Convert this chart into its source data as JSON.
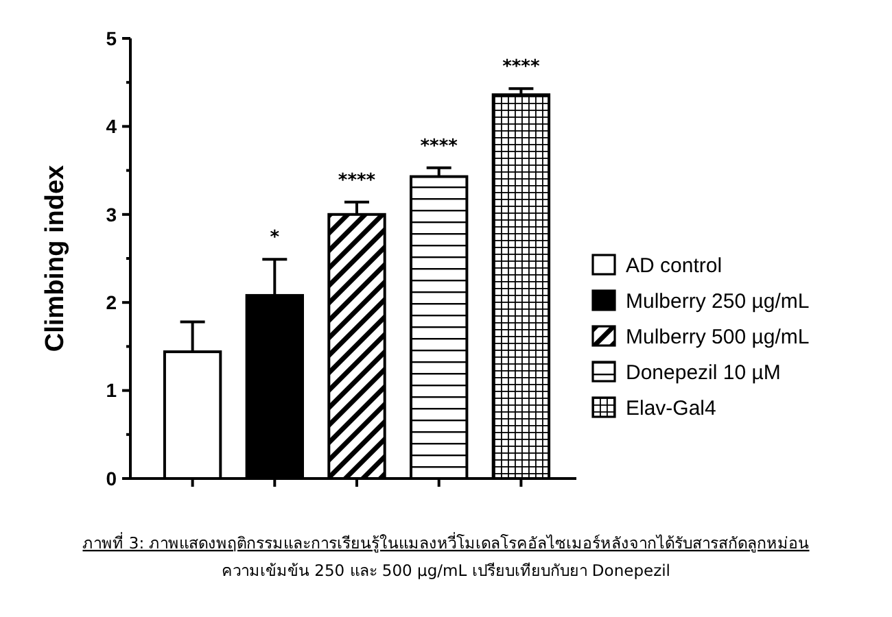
{
  "chart_data": {
    "type": "bar",
    "ylabel": "Climbing index",
    "categories": [
      null,
      null,
      null,
      null,
      null
    ],
    "series": [
      {
        "name": "AD control",
        "color": "#ffffff",
        "values": [
          1.44,
          null,
          null,
          null,
          null
        ],
        "errors": [
          [
            1.44,
            1.78
          ],
          null,
          null,
          null,
          null
        ],
        "value_labels": [
          null,
          null,
          null,
          null,
          null
        ]
      },
      {
        "name": "Mulberry 250 µg/mL",
        "color": "#000000",
        "values": [
          null,
          2.08,
          null,
          null,
          null
        ],
        "errors": [
          null,
          [
            2.08,
            2.49
          ],
          null,
          null,
          null
        ],
        "value_labels": [
          null,
          "*",
          null,
          null,
          null
        ]
      },
      {
        "name": "Mulberry  500 µg/mL",
        "color": "#000000",
        "values": [
          null,
          null,
          3.0,
          null,
          null
        ],
        "errors": [
          null,
          null,
          [
            3.0,
            3.14
          ],
          null,
          null
        ],
        "value_labels": [
          null,
          null,
          "****",
          null,
          null
        ]
      },
      {
        "name": "Donepezil 10 µM",
        "color": "#000000",
        "values": [
          null,
          null,
          null,
          3.43,
          null
        ],
        "errors": [
          null,
          null,
          null,
          [
            3.43,
            3.53
          ],
          null
        ],
        "value_labels": [
          null,
          null,
          null,
          "****",
          null
        ]
      },
      {
        "name": "Elav-Gal4",
        "color": "#000000",
        "values": [
          null,
          null,
          null,
          null,
          4.36
        ],
        "errors": [
          null,
          null,
          null,
          null,
          [
            4.36,
            4.43
          ]
        ],
        "value_labels": [
          null,
          null,
          null,
          null,
          "****"
        ]
      }
    ],
    "ylim": [
      0,
      5
    ],
    "yticks": [
      0,
      {
        "value": 0.5,
        "label": null
      },
      1,
      {
        "value": 1.5,
        "label": null
      },
      2,
      {
        "value": 2.5,
        "label": null
      },
      3,
      {
        "value": 3.5,
        "label": null
      },
      4,
      {
        "value": 4.5,
        "label": null
      },
      5
    ],
    "tick_labels": "y",
    "grid": false,
    "legend": "right",
    "annotations": [
      "ภาพที่ 3: ภาพแสดงพฤติกรรมและการเรียนรู้ในแมลงหวี่โมเดลโรคอัลไซเมอร์หลังจากได้รับสารสกัดลูกหม่อน",
      "ความเข้มข้น 250 และ 500 µg/mL เปรียบเทียบกับยา Donepezil"
    ]
  }
}
